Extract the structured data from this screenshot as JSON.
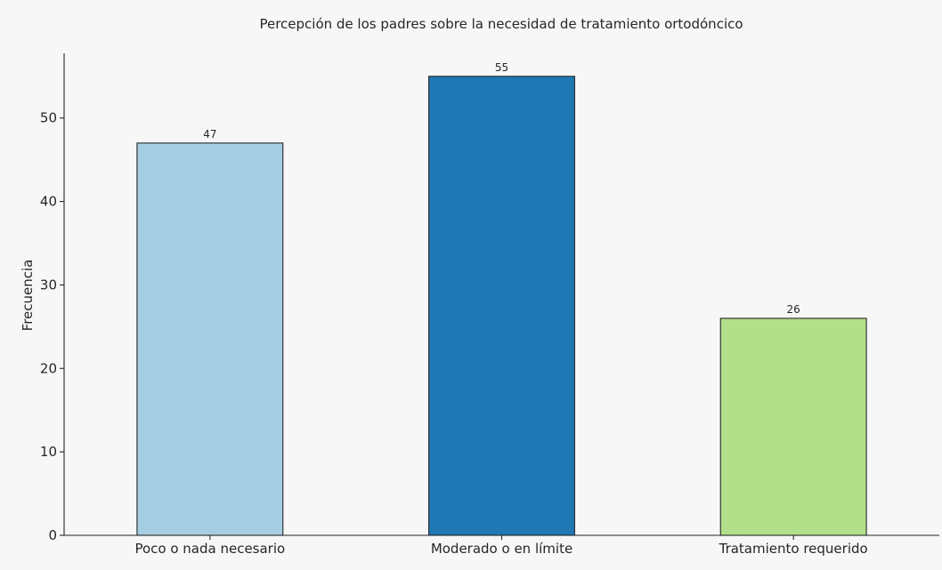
{
  "chart_data": {
    "type": "bar",
    "title": "Percepción de los padres sobre la necesidad de tratamiento ortodóncico",
    "xlabel": "",
    "ylabel": "Frecuencia",
    "categories": [
      "Poco o nada necesario",
      "Moderado o en límite",
      "Tratamiento requerido"
    ],
    "values": [
      47,
      55,
      26
    ],
    "data_labels": [
      "47",
      "55",
      "26"
    ],
    "colors": [
      "#a6cee3",
      "#1f78b4",
      "#b2df8a"
    ],
    "ylim": [
      0,
      57.75
    ],
    "yticks": [
      0,
      10,
      20,
      30,
      40,
      50
    ],
    "ytick_labels": [
      "0",
      "10",
      "20",
      "30",
      "40",
      "50"
    ],
    "grid": false,
    "legend": "none"
  }
}
